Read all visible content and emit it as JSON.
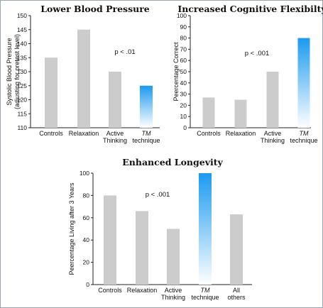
{
  "chart_data": [
    {
      "type": "bar",
      "title": "Lower Blood Pressure",
      "ylabel": [
        "Systolic Blood Pressure",
        "(adjusting for pretest level)"
      ],
      "ylim": [
        110,
        150
      ],
      "yticks": [
        110,
        115,
        120,
        125,
        130,
        135,
        140,
        145,
        150
      ],
      "categories": [
        [
          "Controls"
        ],
        [
          "Relaxation"
        ],
        [
          "Active",
          "Thinking"
        ],
        [
          "TM",
          "technique"
        ]
      ],
      "values": [
        135,
        145,
        130,
        125
      ],
      "annotation": "p < .01",
      "highlight_index": 3,
      "bar_color": "#cccccc",
      "highlight_color": "#1a9af0"
    },
    {
      "type": "bar",
      "title": "Increased Cognitive Flexibilty",
      "ylabel": [
        "Peercentage Correct"
      ],
      "ylim": [
        0,
        100
      ],
      "yticks": [
        0,
        10,
        20,
        30,
        40,
        50,
        60,
        70,
        80,
        90,
        100
      ],
      "categories": [
        [
          "Controls"
        ],
        [
          "Relaxation"
        ],
        [
          "Active",
          "Thinking"
        ],
        [
          "TM",
          "technique"
        ]
      ],
      "values": [
        27,
        25,
        50,
        80
      ],
      "annotation": "p < .001",
      "highlight_index": 3,
      "bar_color": "#cccccc",
      "highlight_color": "#1a9af0"
    },
    {
      "type": "bar",
      "title": "Enhanced Longevity",
      "ylabel": [
        "Peercentage Living after 3 Years"
      ],
      "ylim": [
        0,
        100
      ],
      "yticks": [
        0,
        20,
        40,
        60,
        80,
        100
      ],
      "categories": [
        [
          "Controls"
        ],
        [
          "Relaxation"
        ],
        [
          "Active",
          "Thinking"
        ],
        [
          "TM",
          "technique"
        ],
        [
          "All",
          "others"
        ]
      ],
      "values": [
        80,
        66,
        50,
        100,
        63
      ],
      "annotation": "p < .001",
      "highlight_index": 3,
      "bar_color": "#cccccc",
      "highlight_color": "#1a9af0"
    }
  ]
}
